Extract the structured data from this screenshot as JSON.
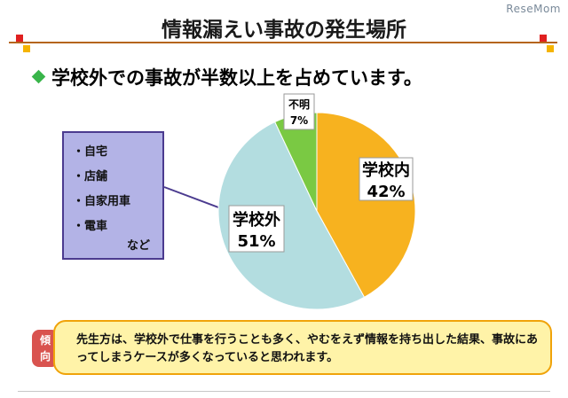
{
  "watermark": "ReseMom",
  "title": "情報漏えい事故の発生場所",
  "subtitle": "学校外での事故が半数以上を占めています。",
  "colors": {
    "rule": "#b5651d",
    "square_red": "#e02020",
    "square_yellow": "#f5b400",
    "accent_green": "#39b54a"
  },
  "callout": {
    "items": [
      "・自宅",
      "・店舗",
      "・自家用車",
      "・電車"
    ],
    "etc": "など"
  },
  "chart_data": {
    "type": "pie",
    "title": "",
    "slices": [
      {
        "label": "学校内",
        "value": 42,
        "value_label": "42%",
        "color": "#f7b21f"
      },
      {
        "label": "学校外",
        "value": 51,
        "value_label": "51%",
        "color": "#b3dde0"
      },
      {
        "label": "不明",
        "value": 7,
        "value_label": "7%",
        "color": "#7ac943"
      }
    ],
    "start": "top",
    "direction": "clockwise"
  },
  "trend": {
    "tag_top": "傾",
    "tag_bottom": "向",
    "text": "先生方は、学校外で仕事を行うことも多く、やむをえず情報を持ち出した結果、事故にあってしまうケースが多くなっていると思われます。"
  }
}
